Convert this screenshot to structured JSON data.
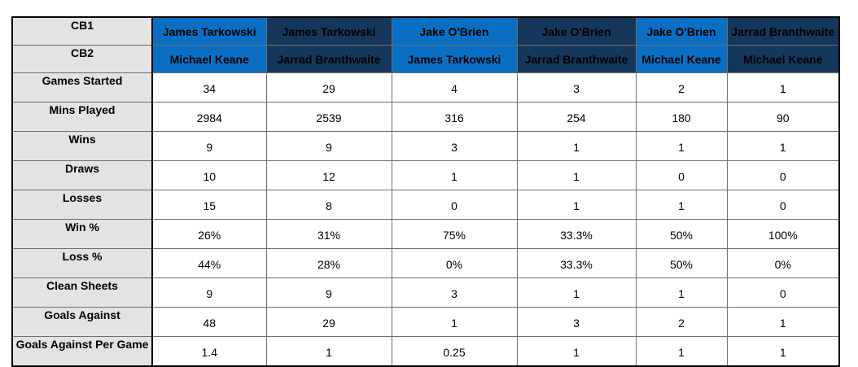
{
  "rows": {
    "cb1": "CB1",
    "cb2": "CB2",
    "games_started": "Games Started",
    "mins_played": "Mins Played",
    "wins": "Wins",
    "draws": "Draws",
    "losses": "Losses",
    "win_pct": "Win %",
    "loss_pct": "Loss %",
    "clean_sheets": "Clean Sheets",
    "goals_against": "Goals Against",
    "gapg": "Goals Against Per Game"
  },
  "pairings": [
    {
      "cb1": "James Tarkowski",
      "cb2": "Michael Keane",
      "games_started": "34",
      "mins_played": "2984",
      "wins": "9",
      "draws": "10",
      "losses": "15",
      "win_pct": "26%",
      "loss_pct": "44%",
      "clean_sheets": "9",
      "goals_against": "48",
      "gapg": "1.4"
    },
    {
      "cb1": "James Tarkowski",
      "cb2": "Jarrad Branthwaite",
      "games_started": "29",
      "mins_played": "2539",
      "wins": "9",
      "draws": "12",
      "losses": "8",
      "win_pct": "31%",
      "loss_pct": "28%",
      "clean_sheets": "9",
      "goals_against": "29",
      "gapg": "1"
    },
    {
      "cb1": "Jake O'Brien",
      "cb2": "James Tarkowski",
      "games_started": "4",
      "mins_played": "316",
      "wins": "3",
      "draws": "1",
      "losses": "0",
      "win_pct": "75%",
      "loss_pct": "0%",
      "clean_sheets": "3",
      "goals_against": "1",
      "gapg": "0.25"
    },
    {
      "cb1": "Jake O'Brien",
      "cb2": "Jarrad Branthwaite",
      "games_started": "3",
      "mins_played": "254",
      "wins": "1",
      "draws": "1",
      "losses": "1",
      "win_pct": "33.3%",
      "loss_pct": "33.3%",
      "clean_sheets": "1",
      "goals_against": "3",
      "gapg": "1"
    },
    {
      "cb1": "Jake O'Brien",
      "cb2": "Michael Keane",
      "games_started": "2",
      "mins_played": "180",
      "wins": "1",
      "draws": "0",
      "losses": "1",
      "win_pct": "50%",
      "loss_pct": "50%",
      "clean_sheets": "1",
      "goals_against": "2",
      "gapg": "1"
    },
    {
      "cb1": "Jarrad Branthwaite",
      "cb2": "Michael Keane",
      "games_started": "1",
      "mins_played": "90",
      "wins": "1",
      "draws": "0",
      "losses": "0",
      "win_pct": "100%",
      "loss_pct": "0%",
      "clean_sheets": "0",
      "goals_against": "1",
      "gapg": "1"
    }
  ],
  "colors": {
    "header_light": "#0a6fc2",
    "header_dark": "#16375c",
    "row_label_bg": "#e3e3e3"
  }
}
